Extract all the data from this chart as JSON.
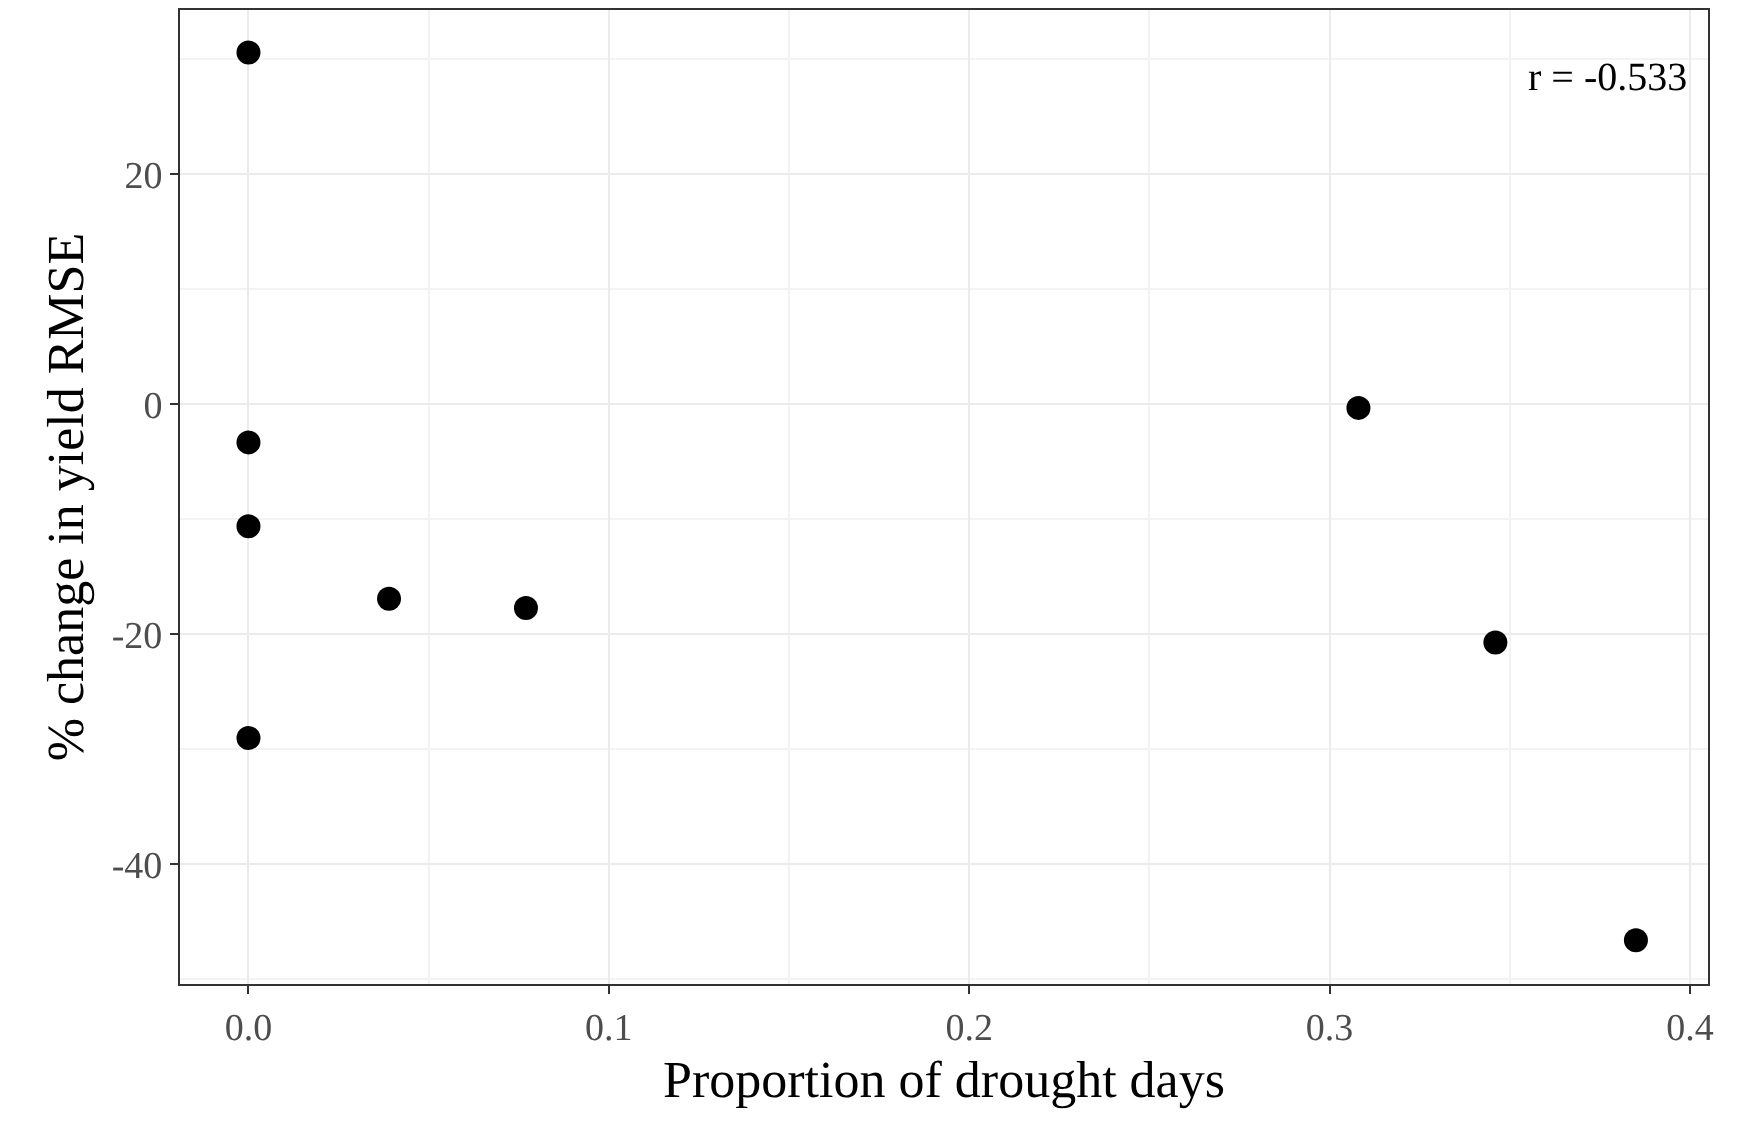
{
  "chart_data": {
    "type": "scatter",
    "xlabel": "Proportion of drought days",
    "ylabel": "% change in yield RMSE",
    "x": [
      0,
      0,
      0,
      0,
      0.039,
      0.077,
      0.308,
      0.346,
      0.385
    ],
    "values": [
      30.6,
      -3.3,
      -10.6,
      -29.0,
      -16.9,
      -17.7,
      -0.3,
      -20.7,
      -46.6
    ],
    "color": "#000000",
    "xlim": [
      -0.019,
      0.405
    ],
    "ylim": [
      -50.4,
      34.3
    ],
    "xticks": [
      {
        "value": 0,
        "label": "0.0"
      },
      0.1,
      0.2,
      0.3,
      0.4
    ],
    "yticks": [
      -40,
      -20,
      0,
      20
    ],
    "annotations": [
      "r = -0.533"
    ],
    "grid": true,
    "marker": "circle"
  }
}
